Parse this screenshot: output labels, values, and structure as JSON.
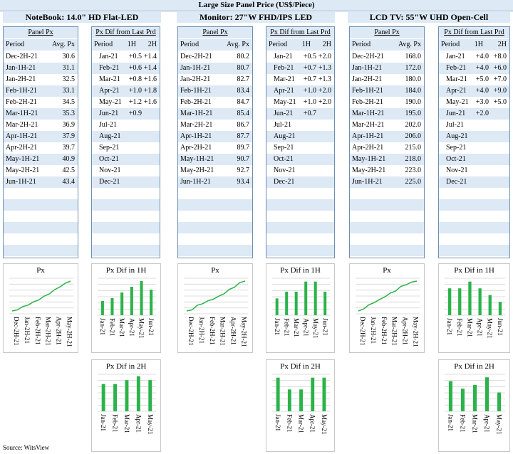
{
  "title": "Large Size Panel Price (US$/Piece)",
  "source": "Source: WitsView",
  "colors": {
    "accent_fill": "#dde9f5",
    "bar": "#2bb34a",
    "line": "#2bb34a",
    "border": "#6f8fb0"
  },
  "products": [
    {
      "name": "NoteBook: 14.0\" HD Flat-LED",
      "panel_px": {
        "header": "Panel Px",
        "col_period": "Period",
        "col_avg": "Avg. Px",
        "rows": [
          {
            "period": "Dec-2H-21",
            "px": "30.6"
          },
          {
            "period": "Jan-1H-21",
            "px": "31.1"
          },
          {
            "period": "Jan-2H-21",
            "px": "32.5"
          },
          {
            "period": "Feb-1H-21",
            "px": "33.1"
          },
          {
            "period": "Feb-2H-21",
            "px": "34.5"
          },
          {
            "period": "Mar-1H-21",
            "px": "35.3"
          },
          {
            "period": "Mar-2H-21",
            "px": "36.9"
          },
          {
            "period": "Apr-1H-21",
            "px": "37.9"
          },
          {
            "period": "Apr-2H-21",
            "px": "39.7"
          },
          {
            "period": "May-1H-21",
            "px": "40.9"
          },
          {
            "period": "May-2H-21",
            "px": "42.5"
          },
          {
            "period": "Jun-1H-21",
            "px": "43.4"
          }
        ]
      },
      "px_dif": {
        "header": "Px Dif from Last Prd",
        "col_period": "Period",
        "col_1h": "1H",
        "col_2h": "2H",
        "rows": [
          {
            "period": "Jan-21",
            "h1": "+0.5",
            "h2": "+1.4"
          },
          {
            "period": "Feb-21",
            "h1": "+0.6",
            "h2": "+1.4"
          },
          {
            "period": "Mar-21",
            "h1": "+0.8",
            "h2": "+1.6"
          },
          {
            "period": "Apr-21",
            "h1": "+1.0",
            "h2": "+1.8"
          },
          {
            "period": "May-21",
            "h1": "+1.2",
            "h2": "+1.6"
          },
          {
            "period": "Jun-21",
            "h1": "+0.9",
            "h2": ""
          },
          {
            "period": "Jul-21",
            "h1": "",
            "h2": ""
          },
          {
            "period": "Aug-21",
            "h1": "",
            "h2": ""
          },
          {
            "period": "Sep-21",
            "h1": "",
            "h2": ""
          },
          {
            "period": "Oct-21",
            "h1": "",
            "h2": ""
          },
          {
            "period": "Nov-21",
            "h1": "",
            "h2": ""
          },
          {
            "period": "Dec-21",
            "h1": "",
            "h2": ""
          }
        ]
      }
    },
    {
      "name": "Monitor: 27\"W FHD/IPS LED",
      "panel_px": {
        "header": "Panel Px",
        "col_period": "Period",
        "col_avg": "Avg. Px",
        "rows": [
          {
            "period": "Dec-2H-21",
            "px": "80.2"
          },
          {
            "period": "Jan-1H-21",
            "px": "80.7"
          },
          {
            "period": "Jan-2H-21",
            "px": "82.7"
          },
          {
            "period": "Feb-1H-21",
            "px": "83.4"
          },
          {
            "period": "Feb-2H-21",
            "px": "84.7"
          },
          {
            "period": "Mar-1H-21",
            "px": "85.4"
          },
          {
            "period": "Mar-2H-21",
            "px": "86.7"
          },
          {
            "period": "Apr-1H-21",
            "px": "87.7"
          },
          {
            "period": "Apr-2H-21",
            "px": "89.7"
          },
          {
            "period": "May-1H-21",
            "px": "90.7"
          },
          {
            "period": "May-2H-21",
            "px": "92.7"
          },
          {
            "period": "Jun-1H-21",
            "px": "93.4"
          }
        ]
      },
      "px_dif": {
        "header": "Px Dif from Last Prd",
        "col_period": "Period",
        "col_1h": "1H",
        "col_2h": "2H",
        "rows": [
          {
            "period": "Jan-21",
            "h1": "+0.5",
            "h2": "+2.0"
          },
          {
            "period": "Feb-21",
            "h1": "+0.7",
            "h2": "+1.3"
          },
          {
            "period": "Mar-21",
            "h1": "+0.7",
            "h2": "+1.3"
          },
          {
            "period": "Apr-21",
            "h1": "+1.0",
            "h2": "+2.0"
          },
          {
            "period": "May-21",
            "h1": "+1.0",
            "h2": "+2.0"
          },
          {
            "period": "Jun-21",
            "h1": "+0.7",
            "h2": ""
          },
          {
            "period": "Jul-21",
            "h1": "",
            "h2": ""
          },
          {
            "period": "Aug-21",
            "h1": "",
            "h2": ""
          },
          {
            "period": "Sep-21",
            "h1": "",
            "h2": ""
          },
          {
            "period": "Oct-21",
            "h1": "",
            "h2": ""
          },
          {
            "period": "Nov-21",
            "h1": "",
            "h2": ""
          },
          {
            "period": "Dec-21",
            "h1": "",
            "h2": ""
          }
        ]
      }
    },
    {
      "name": "LCD TV: 55\"W UHD Open-Cell",
      "panel_px": {
        "header": "Panel Px",
        "col_period": "Period",
        "col_avg": "Avg. Px",
        "rows": [
          {
            "period": "Dec-2H-21",
            "px": "168.0"
          },
          {
            "period": "Jan-1H-21",
            "px": "172.0"
          },
          {
            "period": "Jan-2H-21",
            "px": "180.0"
          },
          {
            "period": "Feb-1H-21",
            "px": "184.0"
          },
          {
            "period": "Feb-2H-21",
            "px": "190.0"
          },
          {
            "period": "Mar-1H-21",
            "px": "195.0"
          },
          {
            "period": "Mar-2H-21",
            "px": "202.0"
          },
          {
            "period": "Apr-1H-21",
            "px": "206.0"
          },
          {
            "period": "Apr-2H-21",
            "px": "215.0"
          },
          {
            "period": "May-1H-21",
            "px": "218.0"
          },
          {
            "period": "May-2H-21",
            "px": "223.0"
          },
          {
            "period": "Jun-1H-21",
            "px": "225.0"
          }
        ]
      },
      "px_dif": {
        "header": "Px Dif from Last Prd",
        "col_period": "Period",
        "col_1h": "1H",
        "col_2h": "2H",
        "rows": [
          {
            "period": "Jan-21",
            "h1": "+4.0",
            "h2": "+8.0"
          },
          {
            "period": "Feb-21",
            "h1": "+4.0",
            "h2": "+6.0"
          },
          {
            "period": "Mar-21",
            "h1": "+5.0",
            "h2": "+7.0"
          },
          {
            "period": "Apr-21",
            "h1": "+4.0",
            "h2": "+9.0"
          },
          {
            "period": "May-21",
            "h1": "+3.0",
            "h2": "+5.0"
          },
          {
            "period": "Jun-21",
            "h1": "+2.0",
            "h2": ""
          },
          {
            "period": "Jul-21",
            "h1": "",
            "h2": ""
          },
          {
            "period": "Aug-21",
            "h1": "",
            "h2": ""
          },
          {
            "period": "Sep-21",
            "h1": "",
            "h2": ""
          },
          {
            "period": "Oct-21",
            "h1": "",
            "h2": ""
          },
          {
            "period": "Nov-21",
            "h1": "",
            "h2": ""
          },
          {
            "period": "Dec-21",
            "h1": "",
            "h2": ""
          }
        ]
      }
    }
  ],
  "chart_data": [
    {
      "id": "nb-px",
      "type": "line",
      "title": "Px",
      "x": [
        "Dec-2H-21",
        "Jan-1H-21",
        "Jan-2H-21",
        "Feb-1H-21",
        "Feb-2H-21",
        "Mar-1H-21",
        "Mar-2H-21",
        "Apr-1H-21",
        "Apr-2H-21",
        "May-1H-21",
        "May-2H-21",
        "Jun-1H-21"
      ],
      "y": [
        30.6,
        31.1,
        32.5,
        33.1,
        34.5,
        35.3,
        36.9,
        37.9,
        39.7,
        40.9,
        42.5,
        43.4
      ],
      "xticks": [
        "Dec-2H-21",
        "Jan-2H-21",
        "Feb-2H-21",
        "Mar-2H-21",
        "Apr-2H-21",
        "May-2H-21"
      ],
      "grid": true
    },
    {
      "id": "nb-1h",
      "type": "bar",
      "title": "Px Dif in 1H",
      "categories": [
        "Jan-21",
        "Feb-21",
        "Mar-21",
        "Apr-21",
        "May-21",
        "Jun-21"
      ],
      "values": [
        0.5,
        0.6,
        0.8,
        1.0,
        1.2,
        0.9
      ],
      "ylim": [
        0,
        1.3
      ],
      "grid": true
    },
    {
      "id": "nb-2h",
      "type": "bar",
      "title": "Px Dif in 2H",
      "categories": [
        "Jan-21",
        "Feb-21",
        "Mar-21",
        "Apr-21",
        "May-21"
      ],
      "values": [
        1.4,
        1.4,
        1.6,
        1.8,
        1.6
      ],
      "ylim": [
        0,
        1.9
      ],
      "grid": true
    },
    {
      "id": "mn-px",
      "type": "line",
      "title": "Px",
      "x": [
        "Dec-2H-21",
        "Jan-1H-21",
        "Jan-2H-21",
        "Feb-1H-21",
        "Feb-2H-21",
        "Mar-1H-21",
        "Mar-2H-21",
        "Apr-1H-21",
        "Apr-2H-21",
        "May-1H-21",
        "May-2H-21",
        "Jun-1H-21"
      ],
      "y": [
        80.2,
        80.7,
        82.7,
        83.4,
        84.7,
        85.4,
        86.7,
        87.7,
        89.7,
        90.7,
        92.7,
        93.4
      ],
      "xticks": [
        "Dec-2H-21",
        "Jan-2H-21",
        "Feb-2H-21",
        "Mar-2H-21",
        "Apr-2H-21",
        "May-2H-21"
      ],
      "grid": true
    },
    {
      "id": "mn-1h",
      "type": "bar",
      "title": "Px Dif in 1H",
      "categories": [
        "Jan-21",
        "Feb-21",
        "Mar-21",
        "Apr-21",
        "May-21",
        "Jun-21"
      ],
      "values": [
        0.5,
        0.7,
        0.7,
        1.0,
        1.0,
        0.7
      ],
      "ylim": [
        0,
        1.1
      ],
      "grid": true
    },
    {
      "id": "mn-2h",
      "type": "bar",
      "title": "Px Dif in 2H",
      "categories": [
        "Jan-21",
        "Feb-21",
        "Mar-21",
        "Apr-21",
        "May-21"
      ],
      "values": [
        2.0,
        1.3,
        1.3,
        2.0,
        2.0
      ],
      "ylim": [
        0,
        2.2
      ],
      "grid": true
    },
    {
      "id": "tv-px",
      "type": "line",
      "title": "Px",
      "x": [
        "Dec-2H-21",
        "Jan-1H-21",
        "Jan-2H-21",
        "Feb-1H-21",
        "Feb-2H-21",
        "Mar-1H-21",
        "Mar-2H-21",
        "Apr-1H-21",
        "Apr-2H-21",
        "May-1H-21",
        "May-2H-21",
        "Jun-1H-21"
      ],
      "y": [
        168,
        172,
        180,
        184,
        190,
        195,
        202,
        206,
        215,
        218,
        223,
        225
      ],
      "xticks": [
        "Dec-2H-21",
        "Jan-2H-21",
        "Feb-2H-21",
        "Mar-2H-21",
        "Apr-2H-21",
        "May-2H-21"
      ],
      "grid": true
    },
    {
      "id": "tv-1h",
      "type": "bar",
      "title": "Px Dif in 1H",
      "categories": [
        "Jan-21",
        "Feb-21",
        "Mar-21",
        "Apr-21",
        "May-21",
        "Jun-21"
      ],
      "values": [
        4,
        4,
        5,
        4,
        3,
        2
      ],
      "ylim": [
        0,
        5.5
      ],
      "grid": true
    },
    {
      "id": "tv-2h",
      "type": "bar",
      "title": "Px Dif in 2H",
      "categories": [
        "Jan-21",
        "Feb-21",
        "Mar-21",
        "Apr-21",
        "May-21"
      ],
      "values": [
        8,
        6,
        7,
        9,
        5
      ],
      "ylim": [
        0,
        9.8
      ],
      "grid": true
    }
  ]
}
